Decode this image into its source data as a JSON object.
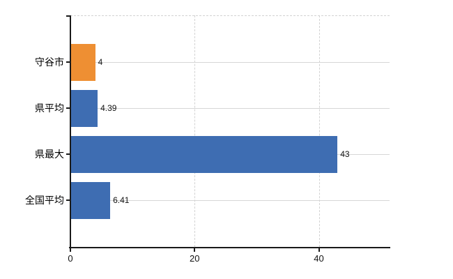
{
  "chart_data": {
    "type": "bar",
    "orientation": "horizontal",
    "title": "",
    "xlabel": "",
    "ylabel": "",
    "categories": [
      "守谷市",
      "県平均",
      "県最大",
      "全国平均"
    ],
    "values": [
      4,
      4.39,
      43,
      6.41
    ],
    "value_labels": [
      "4",
      "4.39",
      "43",
      "6.41"
    ],
    "bar_colors": [
      "#ee8f33",
      "#3e6db2",
      "#3e6db2",
      "#3e6db2"
    ],
    "highlight_color": "#ee8f33",
    "default_color": "#3e6db2",
    "x_ticks": [
      0,
      20,
      40
    ],
    "xlim": [
      0,
      51.5
    ],
    "grid": true,
    "legend": false,
    "background_color": "#ffffff",
    "axis_color": "#1a1a1a",
    "grid_color": "#d4d4d4",
    "text_color": "#000000"
  }
}
